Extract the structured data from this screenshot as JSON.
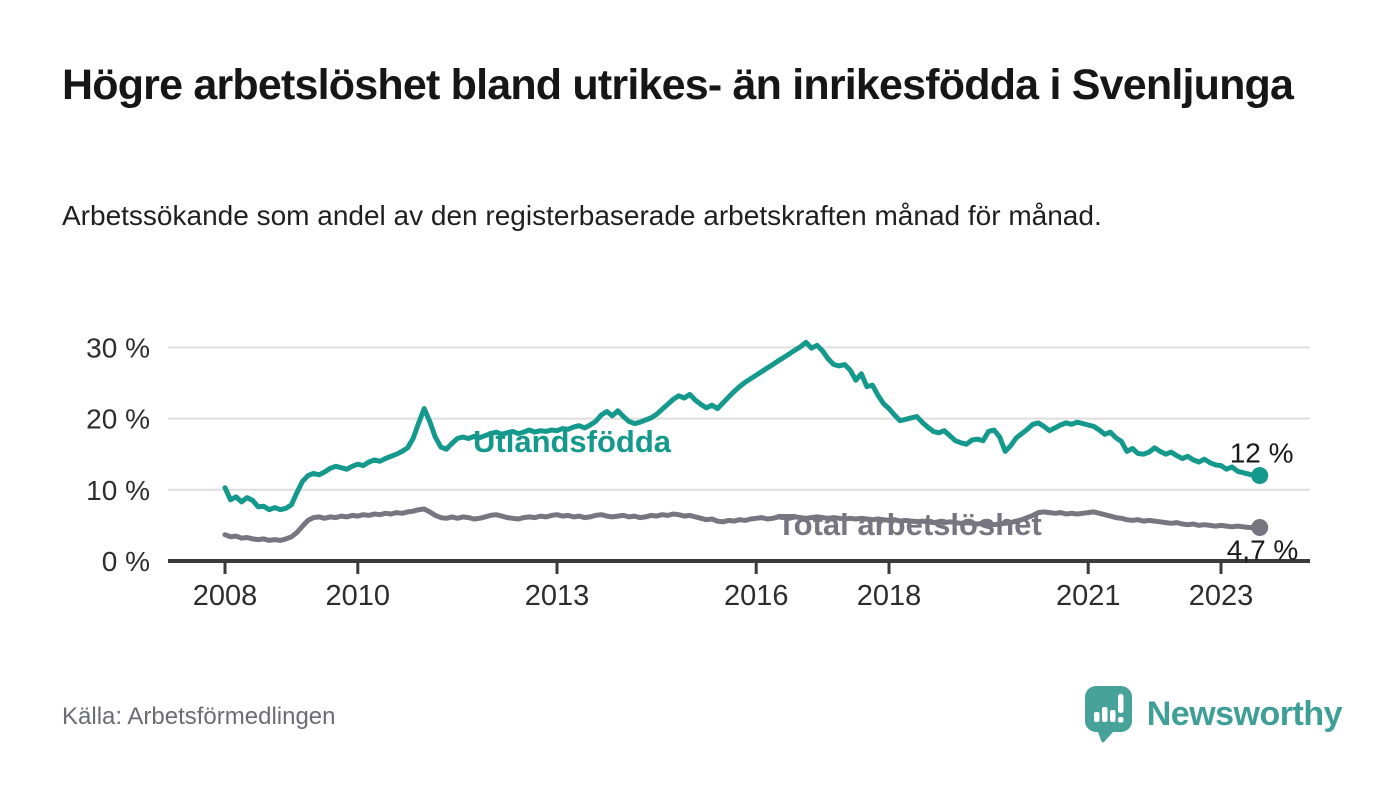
{
  "header": {
    "title": "Högre arbetslöshet bland utrikes- än inrikesfödda i Svenljunga",
    "subtitle": "Arbetssökande som andel av den registerbaserade arbetskraften månad för månad."
  },
  "footer": {
    "source": "Källa: Arbetsförmedlingen",
    "brand": "Newsworthy"
  },
  "colors": {
    "accent_teal": "#14998c",
    "series_gray": "#777680",
    "logo_teal": "#47a29a",
    "axis_dark": "#3b3b3b",
    "gridline": "#dedede",
    "tick_text": "#2d2d2d",
    "annotation_text": "#1a1a1a"
  },
  "chart_data": {
    "type": "line",
    "unit": "%",
    "x_start": {
      "year": 2008,
      "month": 1
    },
    "x_end": {
      "year": 2023,
      "month": 8
    },
    "ylim": [
      0,
      32
    ],
    "grid": "horizontal",
    "legend_position": "inline-labels",
    "y_ticks": [
      {
        "value": 0,
        "label": "0 %"
      },
      {
        "value": 10,
        "label": "10 %"
      },
      {
        "value": 20,
        "label": "20 %"
      },
      {
        "value": 30,
        "label": "30 %"
      }
    ],
    "x_ticks": [
      {
        "year": 2008,
        "label": "2008"
      },
      {
        "year": 2010,
        "label": "2010"
      },
      {
        "year": 2013,
        "label": "2013"
      },
      {
        "year": 2016,
        "label": "2016"
      },
      {
        "year": 2018,
        "label": "2018"
      },
      {
        "year": 2021,
        "label": "2021"
      },
      {
        "year": 2023,
        "label": "2023"
      }
    ],
    "series": [
      {
        "name": "Utlandsfödda",
        "color": "#14998c",
        "end_label": "12 %",
        "last_value": 12.0,
        "values": [
          10.3,
          8.6,
          9.0,
          8.3,
          8.9,
          8.5,
          7.6,
          7.7,
          7.2,
          7.5,
          7.2,
          7.4,
          7.9,
          9.6,
          11.2,
          12.0,
          12.3,
          12.1,
          12.5,
          13.0,
          13.3,
          13.1,
          12.9,
          13.3,
          13.6,
          13.4,
          13.9,
          14.2,
          14.0,
          14.4,
          14.7,
          15.0,
          15.4,
          15.9,
          17.2,
          19.4,
          21.4,
          19.6,
          17.4,
          16.0,
          15.7,
          16.5,
          17.2,
          17.4,
          17.2,
          17.5,
          17.3,
          17.6,
          17.9,
          18.1,
          17.8,
          18.0,
          18.2,
          17.9,
          18.1,
          18.4,
          18.1,
          18.3,
          18.2,
          18.4,
          18.3,
          18.6,
          18.5,
          18.8,
          19.0,
          18.7,
          19.1,
          19.6,
          20.5,
          21.0,
          20.4,
          21.1,
          20.3,
          19.6,
          19.3,
          19.5,
          19.8,
          20.1,
          20.6,
          21.3,
          22.0,
          22.7,
          23.2,
          22.9,
          23.4,
          22.6,
          22.0,
          21.5,
          21.9,
          21.4,
          22.2,
          23.0,
          23.8,
          24.5,
          25.1,
          25.6,
          26.1,
          26.6,
          27.1,
          27.6,
          28.1,
          28.6,
          29.1,
          29.6,
          30.1,
          30.7,
          29.9,
          30.3,
          29.5,
          28.4,
          27.6,
          27.4,
          27.6,
          26.8,
          25.4,
          26.3,
          24.5,
          24.7,
          23.3,
          22.1,
          21.4,
          20.5,
          19.7,
          19.9,
          20.1,
          20.3,
          19.5,
          18.8,
          18.2,
          18.0,
          18.3,
          17.6,
          16.9,
          16.6,
          16.4,
          17.0,
          17.1,
          16.9,
          18.2,
          18.4,
          17.4,
          15.4,
          16.2,
          17.3,
          17.9,
          18.5,
          19.2,
          19.4,
          18.9,
          18.3,
          18.7,
          19.1,
          19.4,
          19.2,
          19.5,
          19.3,
          19.1,
          18.9,
          18.4,
          17.8,
          18.1,
          17.3,
          16.8,
          15.4,
          15.8,
          15.1,
          15.0,
          15.3,
          15.9,
          15.4,
          15.0,
          15.3,
          14.8,
          14.4,
          14.7,
          14.2,
          13.9,
          14.3,
          13.8,
          13.5,
          13.4,
          12.9,
          13.2,
          12.6,
          12.4,
          12.2,
          12.0,
          12.0
        ]
      },
      {
        "name": "Total arbetslöshet",
        "color": "#777680",
        "end_label": "4,7 %",
        "last_value": 4.7,
        "values": [
          3.7,
          3.4,
          3.5,
          3.2,
          3.3,
          3.1,
          3.0,
          3.1,
          2.9,
          3.0,
          2.9,
          3.1,
          3.4,
          4.0,
          4.9,
          5.7,
          6.1,
          6.2,
          6.0,
          6.2,
          6.1,
          6.3,
          6.2,
          6.4,
          6.3,
          6.5,
          6.4,
          6.6,
          6.5,
          6.7,
          6.6,
          6.8,
          6.7,
          6.9,
          7.0,
          7.2,
          7.3,
          6.9,
          6.4,
          6.1,
          6.0,
          6.2,
          6.0,
          6.2,
          6.1,
          5.9,
          6.0,
          6.2,
          6.4,
          6.5,
          6.3,
          6.1,
          6.0,
          5.9,
          6.1,
          6.2,
          6.1,
          6.3,
          6.2,
          6.4,
          6.5,
          6.3,
          6.4,
          6.2,
          6.3,
          6.1,
          6.2,
          6.4,
          6.5,
          6.3,
          6.2,
          6.3,
          6.4,
          6.2,
          6.3,
          6.1,
          6.2,
          6.4,
          6.3,
          6.5,
          6.4,
          6.6,
          6.5,
          6.3,
          6.4,
          6.2,
          6.0,
          5.8,
          5.9,
          5.6,
          5.5,
          5.7,
          5.6,
          5.8,
          5.7,
          5.9,
          6.0,
          6.1,
          5.9,
          6.0,
          6.2,
          6.1,
          6.0,
          6.2,
          6.1,
          6.0,
          6.1,
          6.2,
          6.1,
          6.0,
          6.1,
          6.0,
          5.9,
          6.0,
          5.9,
          6.0,
          5.9,
          5.8,
          5.9,
          5.8,
          5.7,
          5.8,
          5.6,
          5.7,
          5.6,
          5.5,
          5.6,
          5.5,
          5.4,
          5.5,
          5.4,
          5.5,
          5.4,
          5.3,
          5.4,
          5.3,
          5.2,
          5.3,
          5.2,
          5.1,
          5.2,
          5.3,
          5.4,
          5.6,
          5.8,
          6.1,
          6.4,
          6.8,
          6.9,
          6.8,
          6.7,
          6.8,
          6.6,
          6.7,
          6.6,
          6.7,
          6.8,
          6.9,
          6.7,
          6.5,
          6.3,
          6.1,
          6.0,
          5.8,
          5.7,
          5.8,
          5.6,
          5.7,
          5.6,
          5.5,
          5.4,
          5.3,
          5.4,
          5.2,
          5.1,
          5.2,
          5.0,
          5.1,
          5.0,
          4.9,
          5.0,
          4.9,
          4.8,
          4.9,
          4.8,
          4.7,
          4.7,
          4.7
        ]
      }
    ]
  }
}
